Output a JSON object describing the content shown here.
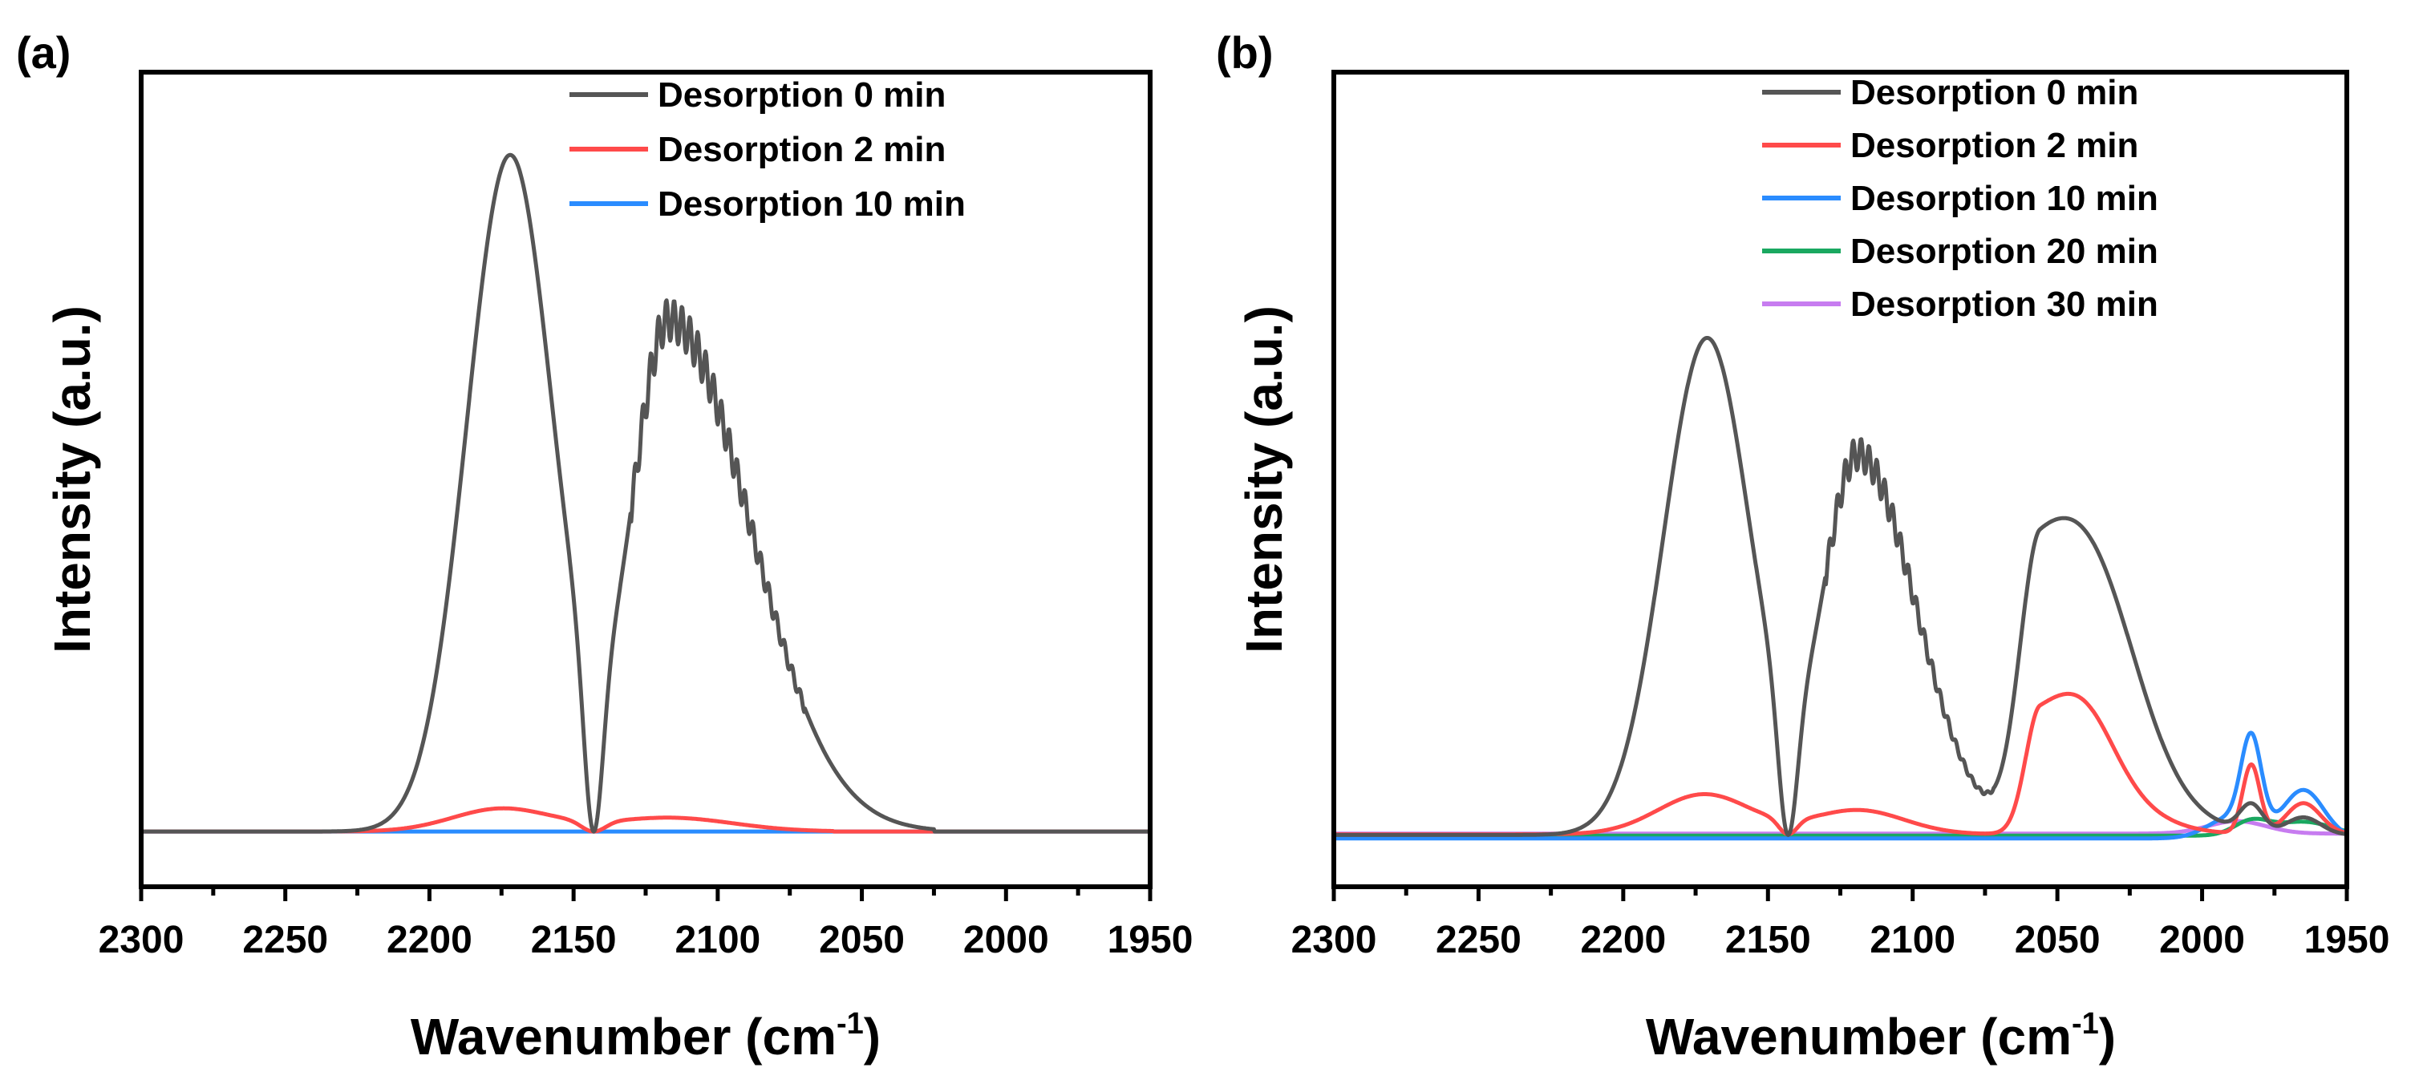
{
  "chart_data": [
    {
      "panel_label": "(a)",
      "type": "line",
      "xlabel_main": "Wavenumber (cm",
      "xlabel_sup": "-1",
      "xlabel_close": ")",
      "ylabel": "Intensity (a.u.)",
      "xlim": [
        2300,
        1950
      ],
      "x_reversed": true,
      "ylim": [
        -0.08,
        1.1
      ],
      "y_ticks_shown": false,
      "xticks": [
        2300,
        2250,
        2200,
        2150,
        2100,
        2050,
        2000,
        1950
      ],
      "xtick_labels": [
        "2300",
        "2250",
        "2200",
        "2150",
        "2100",
        "2050",
        "2000",
        "1950"
      ],
      "legend_position": "top-right",
      "series": [
        {
          "name": "Desorption 0 min",
          "color": "#555555",
          "shape": {
            "peaks": [
              {
                "center": 2172,
                "height": 0.98,
                "sigma": 15
              },
              {
                "center": 2117,
                "height": 0.74,
                "sigma": 13,
                "tail_sigma": 28
              }
            ],
            "notch_center": 2143,
            "notch_width": 3,
            "noise": {
              "from": 2130,
              "to": 2070,
              "amp": 0.03
            },
            "end_x": 2025
          }
        },
        {
          "name": "Desorption 2 min",
          "color": "#ff4a4a",
          "shape": {
            "peaks": [
              {
                "center": 2175,
                "height": 0.033,
                "sigma": 17
              },
              {
                "center": 2117,
                "height": 0.02,
                "sigma": 22
              }
            ],
            "notch_center": 2143,
            "notch_width": 4,
            "end_x": 2060
          }
        },
        {
          "name": "Desorption 10 min",
          "color": "#2a8cff",
          "shape": {
            "peaks": [],
            "flat": 0.0
          }
        }
      ]
    },
    {
      "panel_label": "(b)",
      "type": "line",
      "xlabel_main": "Wavenumber (cm",
      "xlabel_sup": "-1",
      "xlabel_close": ")",
      "ylabel": "Intensity (a.u.)",
      "xlim": [
        2300,
        1950
      ],
      "x_reversed": true,
      "ylim": [
        -0.08,
        1.1
      ],
      "y_ticks_shown": false,
      "xticks": [
        2300,
        2250,
        2200,
        2150,
        2100,
        2050,
        2000,
        1950
      ],
      "xtick_labels": [
        "2300",
        "2250",
        "2200",
        "2150",
        "2100",
        "2050",
        "2000",
        "1950"
      ],
      "legend_position": "top-right",
      "series": [
        {
          "name": "Desorption 0 min",
          "color": "#555555",
          "shape": {
            "peaks": [
              {
                "center": 2171,
                "height": 0.72,
                "sigma": 15
              },
              {
                "center": 2119,
                "height": 0.55,
                "sigma": 12,
                "tail_sigma": 20
              },
              {
                "center": 2056,
                "height": 0.4,
                "sigma": 7,
                "tail_sigma": 25
              },
              {
                "center": 2035,
                "height": 0.12,
                "sigma": 14
              },
              {
                "center": 1983,
                "height": 0.04,
                "sigma": 4
              },
              {
                "center": 1965,
                "height": 0.025,
                "sigma": 6
              }
            ],
            "notch_center": 2143,
            "notch_width": 3,
            "noise": {
              "from": 2130,
              "to": 2072,
              "amp": 0.03
            },
            "baseline": -0.005
          }
        },
        {
          "name": "Desorption 2 min",
          "color": "#ff4a4a",
          "shape": {
            "peaks": [
              {
                "center": 2172,
                "height": 0.058,
                "sigma": 16
              },
              {
                "center": 2119,
                "height": 0.035,
                "sigma": 16
              },
              {
                "center": 2056,
                "height": 0.17,
                "sigma": 5,
                "tail_sigma": 22
              },
              {
                "center": 2040,
                "height": 0.06,
                "sigma": 10
              },
              {
                "center": 1983,
                "height": 0.1,
                "sigma": 3
              },
              {
                "center": 1965,
                "height": 0.045,
                "sigma": 6
              }
            ],
            "notch_center": 2143,
            "notch_width": 3,
            "baseline": -0.004
          }
        },
        {
          "name": "Desorption 10 min",
          "color": "#2a8cff",
          "shape": {
            "peaks": [
              {
                "center": 1983,
                "height": 0.13,
                "sigma": 3.5
              },
              {
                "center": 1965,
                "height": 0.07,
                "sigma": 7
              },
              {
                "center": 1990,
                "height": 0.03,
                "sigma": 8
              }
            ],
            "baseline": -0.01
          }
        },
        {
          "name": "Desorption 20 min",
          "color": "#1aa860",
          "shape": {
            "peaks": [
              {
                "center": 1983,
                "height": 0.02,
                "sigma": 6
              },
              {
                "center": 1965,
                "height": 0.02,
                "sigma": 10
              }
            ],
            "baseline": -0.006
          }
        },
        {
          "name": "Desorption 30 min",
          "color": "#c77cf0",
          "shape": {
            "peaks": [
              {
                "center": 1988,
                "height": 0.018,
                "sigma": 10
              }
            ],
            "baseline": -0.003
          }
        }
      ]
    }
  ]
}
